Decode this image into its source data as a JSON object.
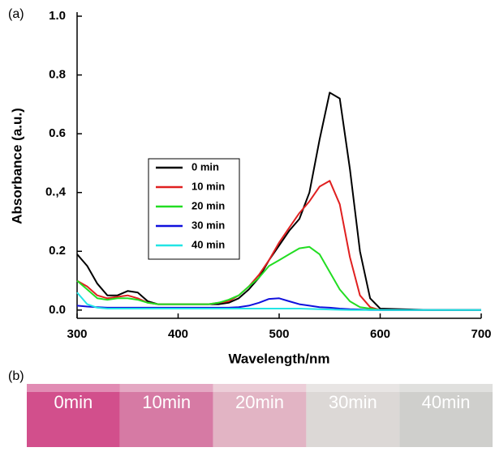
{
  "chart_data": {
    "type": "line",
    "panel_label": "(a)",
    "x_label": "Wavelength/nm",
    "y_label": "Absorbance (a.u.)",
    "x": [
      300,
      310,
      320,
      330,
      340,
      350,
      360,
      370,
      380,
      390,
      400,
      410,
      420,
      430,
      440,
      450,
      460,
      470,
      480,
      490,
      500,
      510,
      520,
      530,
      540,
      550,
      560,
      570,
      580,
      590,
      600,
      650,
      700
    ],
    "series": [
      {
        "name": "0 min",
        "color": "#000000",
        "values": [
          0.19,
          0.15,
          0.09,
          0.05,
          0.05,
          0.065,
          0.06,
          0.03,
          0.02,
          0.02,
          0.02,
          0.02,
          0.02,
          0.02,
          0.02,
          0.025,
          0.04,
          0.07,
          0.11,
          0.17,
          0.22,
          0.27,
          0.31,
          0.4,
          0.58,
          0.74,
          0.72,
          0.48,
          0.2,
          0.04,
          0.005,
          0,
          0
        ]
      },
      {
        "name": "10 min",
        "color": "#e02020",
        "values": [
          0.1,
          0.08,
          0.05,
          0.04,
          0.045,
          0.05,
          0.04,
          0.025,
          0.02,
          0.02,
          0.02,
          0.02,
          0.02,
          0.02,
          0.025,
          0.03,
          0.05,
          0.08,
          0.12,
          0.17,
          0.23,
          0.28,
          0.33,
          0.37,
          0.42,
          0.44,
          0.36,
          0.18,
          0.05,
          0.01,
          0,
          0,
          0
        ]
      },
      {
        "name": "20 min",
        "color": "#22dd22",
        "values": [
          0.1,
          0.07,
          0.04,
          0.035,
          0.04,
          0.04,
          0.035,
          0.025,
          0.02,
          0.02,
          0.02,
          0.02,
          0.02,
          0.02,
          0.025,
          0.035,
          0.05,
          0.08,
          0.11,
          0.15,
          0.17,
          0.19,
          0.21,
          0.215,
          0.19,
          0.13,
          0.07,
          0.03,
          0.01,
          0.005,
          0,
          0,
          0
        ]
      },
      {
        "name": "30 min",
        "color": "#1010dd",
        "values": [
          0.015,
          0.012,
          0.01,
          0.008,
          0.008,
          0.008,
          0.008,
          0.008,
          0.008,
          0.008,
          0.008,
          0.008,
          0.008,
          0.008,
          0.008,
          0.008,
          0.01,
          0.015,
          0.025,
          0.038,
          0.04,
          0.03,
          0.02,
          0.015,
          0.01,
          0.008,
          0.005,
          0.003,
          0.002,
          0,
          0,
          0,
          0
        ]
      },
      {
        "name": "40 min",
        "color": "#22e5e5",
        "values": [
          0.06,
          0.02,
          0.008,
          0.005,
          0.005,
          0.005,
          0.005,
          0.005,
          0.005,
          0.005,
          0.005,
          0.005,
          0.005,
          0.005,
          0.005,
          0.005,
          0.005,
          0.005,
          0.005,
          0.005,
          0.005,
          0.005,
          0.005,
          0.004,
          0.003,
          0.002,
          0.001,
          0,
          0,
          0,
          0,
          0,
          0
        ]
      }
    ],
    "xlim": [
      300,
      700
    ],
    "xticks": [
      300,
      400,
      500,
      600,
      700
    ],
    "ylim": [
      -0.028,
      1.0
    ],
    "yticks": [
      {
        "value": 0,
        "label": "0.0"
      },
      0.2,
      {
        "value": 0.4,
        "label": "0.,4"
      },
      0.6,
      0.8,
      {
        "value": 1,
        "label": "1.0"
      }
    ],
    "grid": false
  },
  "photo": {
    "label": "(b)",
    "samples": [
      "0min",
      "10min",
      "20min",
      "30min",
      "40min"
    ]
  }
}
